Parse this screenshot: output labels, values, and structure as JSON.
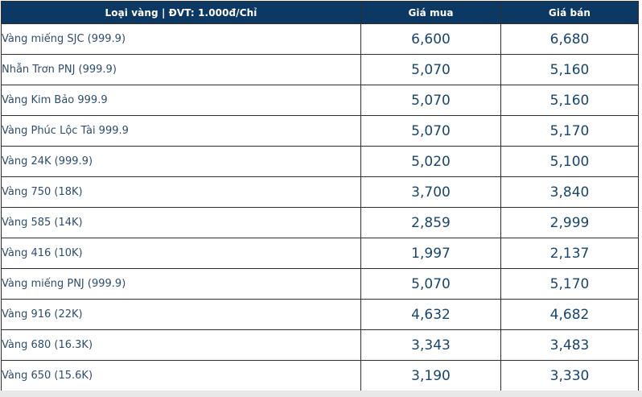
{
  "table": {
    "header": {
      "type_label": "Loại vàng | ĐVT: 1.000đ/Chỉ",
      "buy_label": "Giá mua",
      "sell_label": "Giá bán"
    },
    "rows": [
      {
        "name": "Vàng miếng SJC (999.9)",
        "buy": "6,600",
        "sell": "6,680"
      },
      {
        "name": "Nhẫn Trơn PNJ (999.9)",
        "buy": "5,070",
        "sell": "5,160"
      },
      {
        "name": "Vàng Kim Bảo 999.9",
        "buy": "5,070",
        "sell": "5,160"
      },
      {
        "name": "Vàng Phúc Lộc Tài 999.9",
        "buy": "5,070",
        "sell": "5,170"
      },
      {
        "name": "Vàng 24K (999.9)",
        "buy": "5,020",
        "sell": "5,100"
      },
      {
        "name": "Vàng 750 (18K)",
        "buy": "3,700",
        "sell": "3,840"
      },
      {
        "name": "Vàng 585 (14K)",
        "buy": "2,859",
        "sell": "2,999"
      },
      {
        "name": "Vàng 416 (10K)",
        "buy": "1,997",
        "sell": "2,137"
      },
      {
        "name": "Vàng miếng PNJ (999.9)",
        "buy": "5,070",
        "sell": "5,170"
      },
      {
        "name": "Vàng 916 (22K)",
        "buy": "4,632",
        "sell": "4,682"
      },
      {
        "name": "Vàng 680 (16.3K)",
        "buy": "3,343",
        "sell": "3,483"
      },
      {
        "name": "Vàng 650 (15.6K)",
        "buy": "3,190",
        "sell": "3,330"
      }
    ],
    "colors": {
      "header_bg": "#0c3963",
      "header_text": "#ffffff",
      "row_label_text": "#2f4d6e",
      "price_text": "#17456f",
      "border": "#2e2e2e"
    }
  },
  "chart_data": {
    "type": "table",
    "title": "",
    "columns": [
      "Loại vàng | ĐVT: 1.000đ/Chỉ",
      "Giá mua",
      "Giá bán"
    ],
    "unit": "1.000đ/Chỉ",
    "rows": [
      {
        "category": "Vàng miếng SJC (999.9)",
        "buy": 6600,
        "sell": 6680
      },
      {
        "category": "Nhẫn Trơn PNJ (999.9)",
        "buy": 5070,
        "sell": 5160
      },
      {
        "category": "Vàng Kim Bảo 999.9",
        "buy": 5070,
        "sell": 5160
      },
      {
        "category": "Vàng Phúc Lộc Tài 999.9",
        "buy": 5070,
        "sell": 5170
      },
      {
        "category": "Vàng 24K (999.9)",
        "buy": 5020,
        "sell": 5100
      },
      {
        "category": "Vàng 750 (18K)",
        "buy": 3700,
        "sell": 3840
      },
      {
        "category": "Vàng 585 (14K)",
        "buy": 2859,
        "sell": 2999
      },
      {
        "category": "Vàng 416 (10K)",
        "buy": 1997,
        "sell": 2137
      },
      {
        "category": "Vàng miếng PNJ (999.9)",
        "buy": 5070,
        "sell": 5170
      },
      {
        "category": "Vàng 916 (22K)",
        "buy": 4632,
        "sell": 4682
      },
      {
        "category": "Vàng 680 (16.3K)",
        "buy": 3343,
        "sell": 3483
      },
      {
        "category": "Vàng 650 (15.6K)",
        "buy": 3190,
        "sell": 3330
      }
    ]
  }
}
